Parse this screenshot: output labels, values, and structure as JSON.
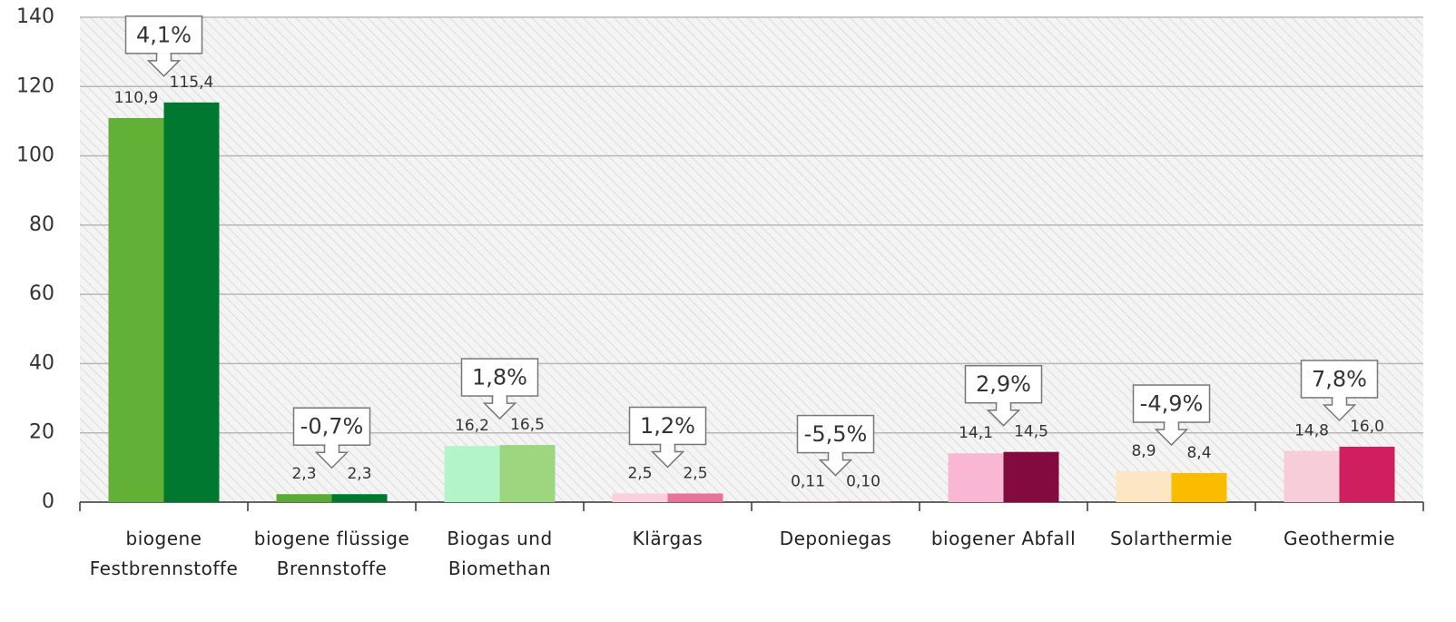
{
  "chart_data": {
    "type": "bar",
    "categories": [
      "biogene Festbrennstoffe",
      "biogene flüssige Brennstoffe",
      "Biogas und Biomethan",
      "Klärgas",
      "Deponiegas",
      "biogener Abfall",
      "Solarthermie",
      "Geothermie"
    ],
    "series": [
      {
        "colors": [
          "#62b036",
          "#5aab35",
          "#b3f5c8",
          "#f9d0dc",
          "#f9d0dc",
          "#f9b7d3",
          "#fde6c4",
          "#f7cdd9"
        ],
        "values": [
          110.9,
          2.3,
          16.2,
          2.5,
          0.11,
          14.1,
          8.9,
          14.8
        ],
        "value_labels": [
          "110,9",
          "2,3",
          "16,2",
          "2,5",
          "0,11",
          "14,1",
          "8,9",
          "14,8"
        ]
      },
      {
        "colors": [
          "#00782f",
          "#00782f",
          "#9dd67e",
          "#e8739a",
          "#e8739a",
          "#820a3e",
          "#fbbc00",
          "#d01f5e"
        ],
        "values": [
          115.4,
          2.3,
          16.5,
          2.5,
          0.1,
          14.5,
          8.4,
          16.0
        ],
        "value_labels": [
          "115,4",
          "2,3",
          "16,5",
          "2,5",
          "0,10",
          "14,5",
          "8,4",
          "16,0"
        ]
      }
    ],
    "annotations": [
      "4,1%",
      "-0,7%",
      "1,8%",
      "1,2%",
      "-5,5%",
      "2,9%",
      "-4,9%",
      "7,8%"
    ],
    "ylim": [
      0,
      140
    ],
    "yticks": [
      0,
      20,
      40,
      60,
      80,
      100,
      120,
      140
    ],
    "grid": true
  }
}
